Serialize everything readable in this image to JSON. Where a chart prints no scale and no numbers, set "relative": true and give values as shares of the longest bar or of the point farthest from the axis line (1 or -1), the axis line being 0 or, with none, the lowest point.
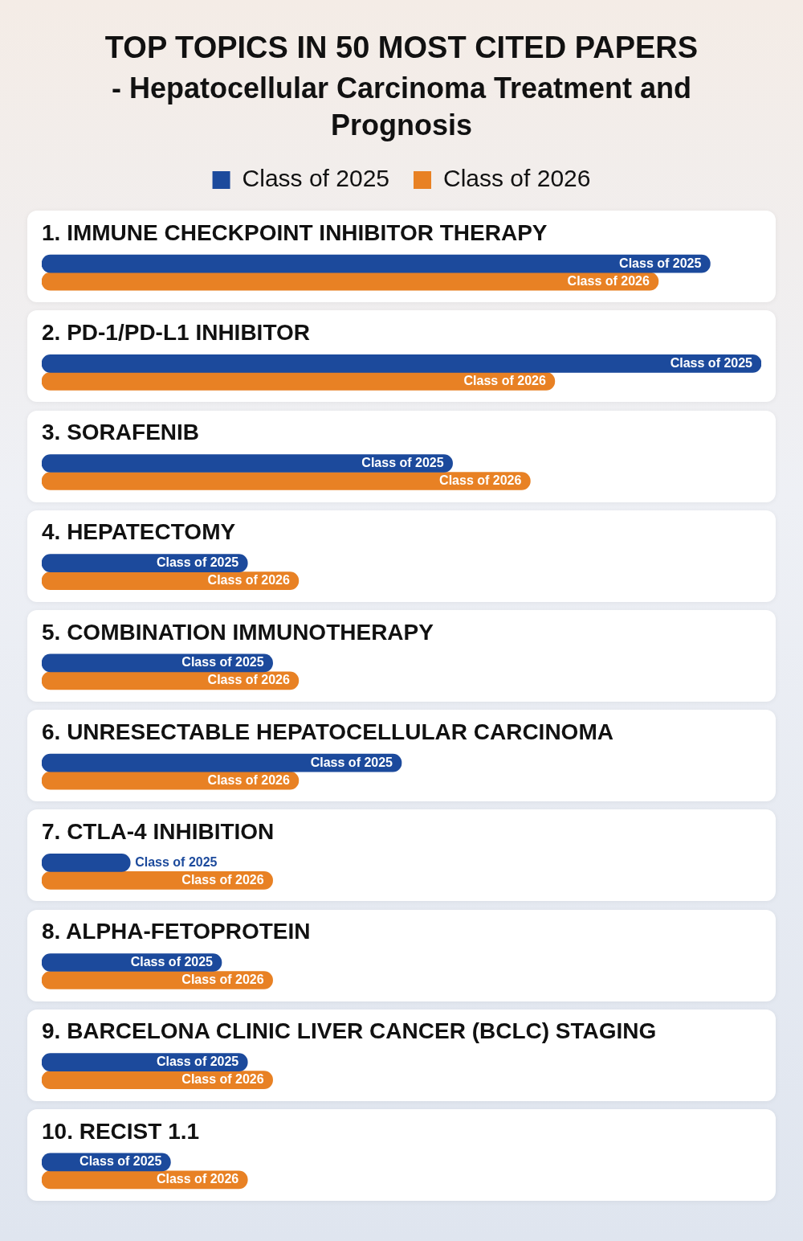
{
  "chart_data": {
    "type": "bar",
    "title": "TOP TOPICS IN 50 MOST CITED PAPERS",
    "subtitle": "- Hepatocellular Carcinoma Treatment and Prognosis",
    "orientation": "horizontal",
    "relative": true,
    "legend": "top",
    "categories": [
      "1. IMMUNE CHECKPOINT INHIBITOR THERAPY",
      "2. PD-1/PD-L1 INHIBITOR",
      "3. SORAFENIB",
      "4. HEPATECTOMY",
      "5. COMBINATION IMMUNOTHERAPY",
      "6. UNRESECTABLE HEPATOCELLULAR CARCINOMA",
      "7. CTLA-4 INHIBITION",
      "8. ALPHA-FETOPROTEIN",
      "9. BARCELONA CLINIC LIVER CANCER (BCLC) STAGING",
      "10. RECIST 1.1"
    ],
    "series": [
      {
        "name": "Class of 2025",
        "color": "#1c4a9c",
        "values": [
          0.929,
          1,
          0.571,
          0.286,
          0.321,
          0.5,
          0.123,
          0.25,
          0.286,
          0.179
        ]
      },
      {
        "name": "Class of 2026",
        "color": "#e88124",
        "values": [
          0.857,
          0.713,
          0.679,
          0.357,
          0.357,
          0.357,
          0.321,
          0.321,
          0.321,
          0.286
        ]
      }
    ]
  }
}
